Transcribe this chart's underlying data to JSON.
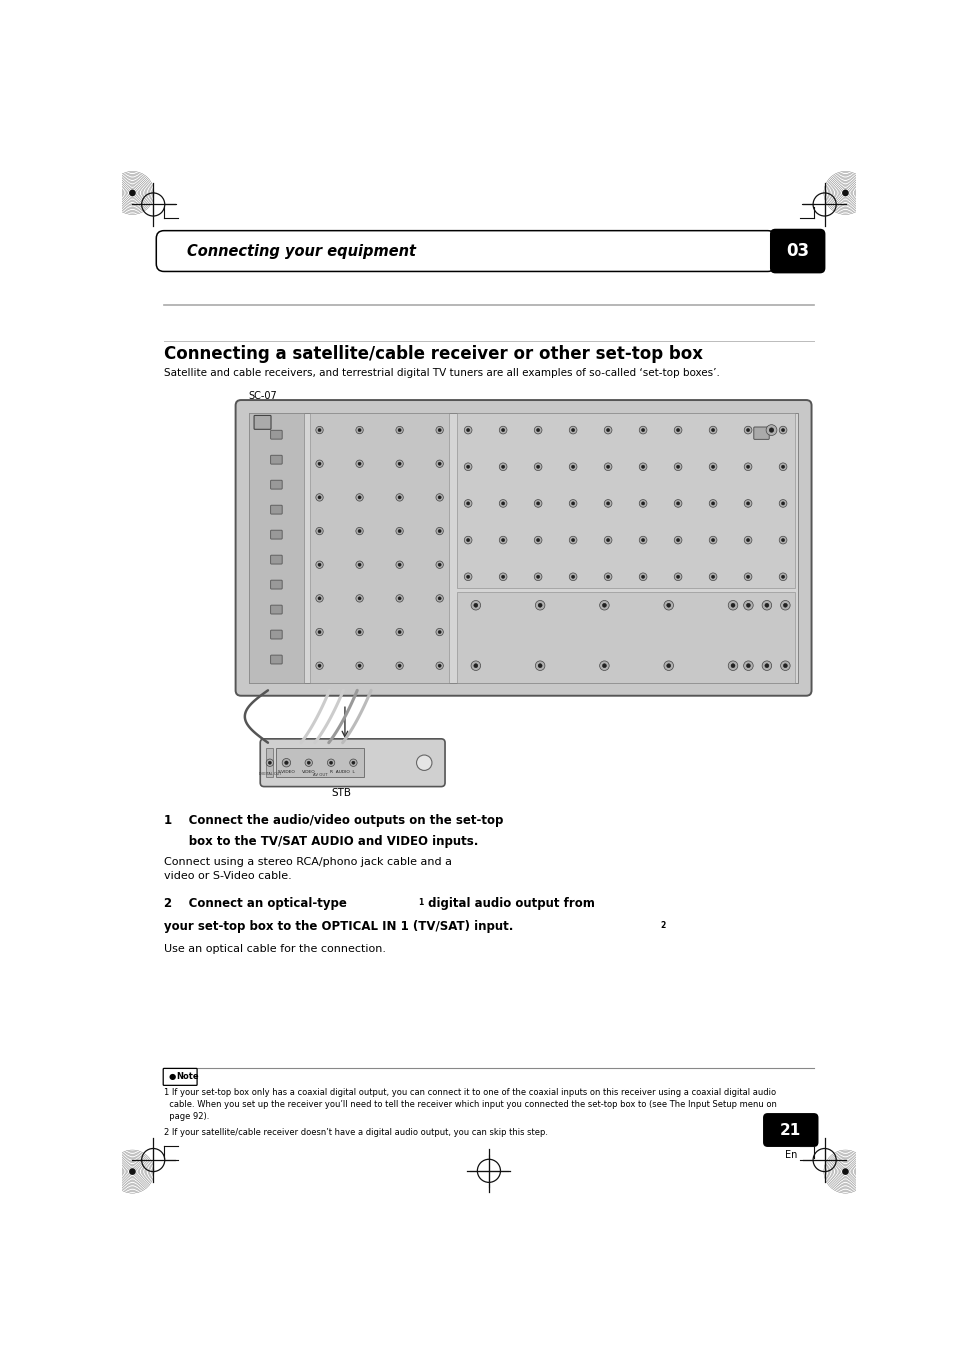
{
  "page_width": 9.54,
  "page_height": 13.51,
  "bg_color": "#ffffff",
  "header_text": "Connecting your equipment",
  "header_number": "03",
  "section_title": "Connecting a satellite/cable receiver or other set-top box",
  "section_subtitle": "Satellite and cable receivers, and terrestrial digital TV tuners are all examples of so-called ‘set-top boxes’.",
  "diagram_label_sc07": "SC-07",
  "diagram_label_stb": "STB",
  "step1_line1": "1    Connect the audio/video outputs on the set-top",
  "step1_line2": "      box to the TV/SAT AUDIO and VIDEO inputs.",
  "step1_normal": "Connect using a stereo RCA/phono jack cable and a\nvideo or S-Video cable.",
  "step2_line1a": "2    Connect an optical-type",
  "step2_sup1": "1",
  "step2_line1b": " digital audio output from",
  "step2_line2a": "your set-top box to the OPTICAL IN 1 (TV/SAT) input.",
  "step2_sup2": "2",
  "step2_normal": "Use an optical cable for the connection.",
  "note1": "1 If your set-top box only has a coaxial digital output, you can connect it to one of the coaxial inputs on this receiver using a coaxial digital audio",
  "note1b": "  cable. When you set up the receiver you’ll need to tell the receiver which input you connected the set-top box to (see ",
  "note1c": "The Input Setup menu",
  "note1d": " on",
  "note1e": "  page 92).",
  "note2": "2 If your satellite/cable receiver doesn’t have a digital audio output, you can skip this step.",
  "page_number": "21",
  "page_en": "En"
}
